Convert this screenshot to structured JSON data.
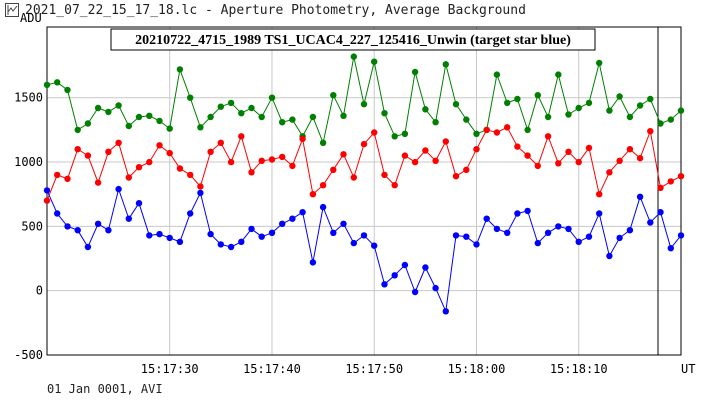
{
  "window": {
    "title": "2021_07_22_15_17_18.lc - Aperture Photometry, Average Background",
    "icon": "lightcurve-app-icon"
  },
  "footer": {
    "text": "01 Jan 0001, AVI"
  },
  "chart_data": {
    "type": "line",
    "title": "20210722_4715_1989 TS1_UCAC4_227_125416_Unwin (target star blue)",
    "ylabel": "ADU",
    "xlabel": "UT",
    "grid": true,
    "legend": "none",
    "ylim": [
      -500,
      2050
    ],
    "xlim": [
      "15:17:18",
      "15:18:20"
    ],
    "yticks": [
      -500,
      0,
      500,
      1000,
      1500
    ],
    "xticks": [
      "15:17:30",
      "15:17:40",
      "15:17:50",
      "15:18:00",
      "15:18:10"
    ],
    "x": [
      "15:17:18",
      "15:17:19",
      "15:17:20",
      "15:17:21",
      "15:17:22",
      "15:17:23",
      "15:17:24",
      "15:17:25",
      "15:17:26",
      "15:17:27",
      "15:17:28",
      "15:17:29",
      "15:17:30",
      "15:17:31",
      "15:17:32",
      "15:17:33",
      "15:17:34",
      "15:17:35",
      "15:17:36",
      "15:17:37",
      "15:17:38",
      "15:17:39",
      "15:17:40",
      "15:17:41",
      "15:17:42",
      "15:17:43",
      "15:17:44",
      "15:17:45",
      "15:17:46",
      "15:17:47",
      "15:17:48",
      "15:17:49",
      "15:17:50",
      "15:17:51",
      "15:17:52",
      "15:17:53",
      "15:17:54",
      "15:17:55",
      "15:17:56",
      "15:17:57",
      "15:17:58",
      "15:17:59",
      "15:18:00",
      "15:18:01",
      "15:18:02",
      "15:18:03",
      "15:18:04",
      "15:18:05",
      "15:18:06",
      "15:18:07",
      "15:18:08",
      "15:18:09",
      "15:18:10",
      "15:18:11",
      "15:18:12",
      "15:18:13",
      "15:18:14",
      "15:18:15",
      "15:18:16",
      "15:18:17",
      "15:18:18",
      "15:18:19",
      "15:18:20"
    ],
    "series": [
      {
        "color": "#008000",
        "values": [
          1600,
          1620,
          1560,
          1250,
          1300,
          1420,
          1390,
          1440,
          1280,
          1350,
          1360,
          1320,
          1260,
          1720,
          1500,
          1270,
          1350,
          1430,
          1460,
          1380,
          1420,
          1350,
          1500,
          1310,
          1330,
          1200,
          1350,
          1150,
          1520,
          1360,
          1820,
          1450,
          1780,
          1380,
          1200,
          1220,
          1700,
          1410,
          1310,
          1760,
          1450,
          1330,
          1220,
          1250,
          1680,
          1460,
          1490,
          1250,
          1520,
          1350,
          1680,
          1370,
          1420,
          1460,
          1770,
          1400,
          1510,
          1350,
          1440,
          1490,
          1300,
          1330,
          1400
        ]
      },
      {
        "color": "#ff0000",
        "values": [
          700,
          900,
          870,
          1100,
          1050,
          840,
          1080,
          1150,
          880,
          960,
          1000,
          1130,
          1070,
          950,
          900,
          810,
          1080,
          1150,
          1000,
          1200,
          920,
          1010,
          1020,
          1040,
          970,
          1180,
          750,
          820,
          940,
          1060,
          880,
          1140,
          1230,
          900,
          820,
          1050,
          1000,
          1090,
          1010,
          1160,
          890,
          940,
          1100,
          1250,
          1230,
          1270,
          1120,
          1050,
          970,
          1200,
          990,
          1080,
          1000,
          1110,
          750,
          920,
          1010,
          1100,
          1030,
          1240,
          800,
          850,
          890
        ]
      },
      {
        "color": "#0000ff",
        "values": [
          780,
          600,
          500,
          470,
          340,
          520,
          470,
          790,
          560,
          680,
          430,
          440,
          410,
          380,
          600,
          760,
          440,
          360,
          340,
          380,
          480,
          420,
          450,
          520,
          560,
          610,
          220,
          650,
          450,
          520,
          370,
          430,
          350,
          50,
          120,
          200,
          -10,
          180,
          20,
          -160,
          430,
          420,
          360,
          560,
          480,
          450,
          600,
          620,
          370,
          450,
          500,
          480,
          380,
          420,
          600,
          270,
          410,
          470,
          730,
          530,
          610,
          330,
          430
        ]
      }
    ]
  }
}
